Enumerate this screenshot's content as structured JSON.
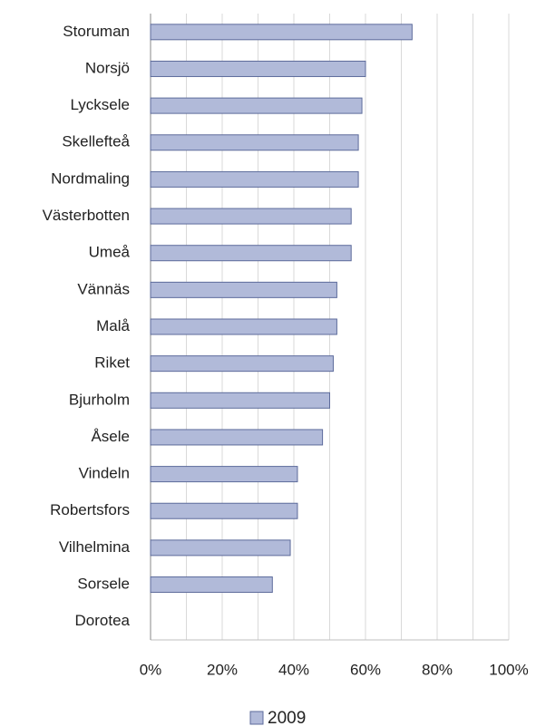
{
  "chart_data": {
    "type": "barh",
    "categories": [
      "Storuman",
      "Norsjö",
      "Lycksele",
      "Skellefteå",
      "Nordmaling",
      "Västerbotten",
      "Umeå",
      "Vännäs",
      "Malå",
      "Riket",
      "Bjurholm",
      "Åsele",
      "Vindeln",
      "Robertsfors",
      "Vilhelmina",
      "Sorsele",
      "Dorotea"
    ],
    "series": [
      {
        "name": "2009",
        "color": "#b1bad9",
        "values": [
          73,
          60,
          59,
          58,
          58,
          56,
          56,
          52,
          52,
          51,
          50,
          48,
          41,
          41,
          39,
          34,
          0
        ]
      }
    ],
    "xlim": [
      0,
      100
    ],
    "xticks": [
      {
        "value": 0,
        "label": "0%"
      },
      {
        "value": 20,
        "label": "20%"
      },
      {
        "value": 40,
        "label": "40%"
      },
      {
        "value": 60,
        "label": "60%"
      },
      {
        "value": 80,
        "label": "80%"
      },
      {
        "value": 100,
        "label": "100%"
      }
    ],
    "minor_xticks": [
      10,
      30,
      50,
      70,
      90
    ],
    "grid": true,
    "legend": "bottom"
  }
}
